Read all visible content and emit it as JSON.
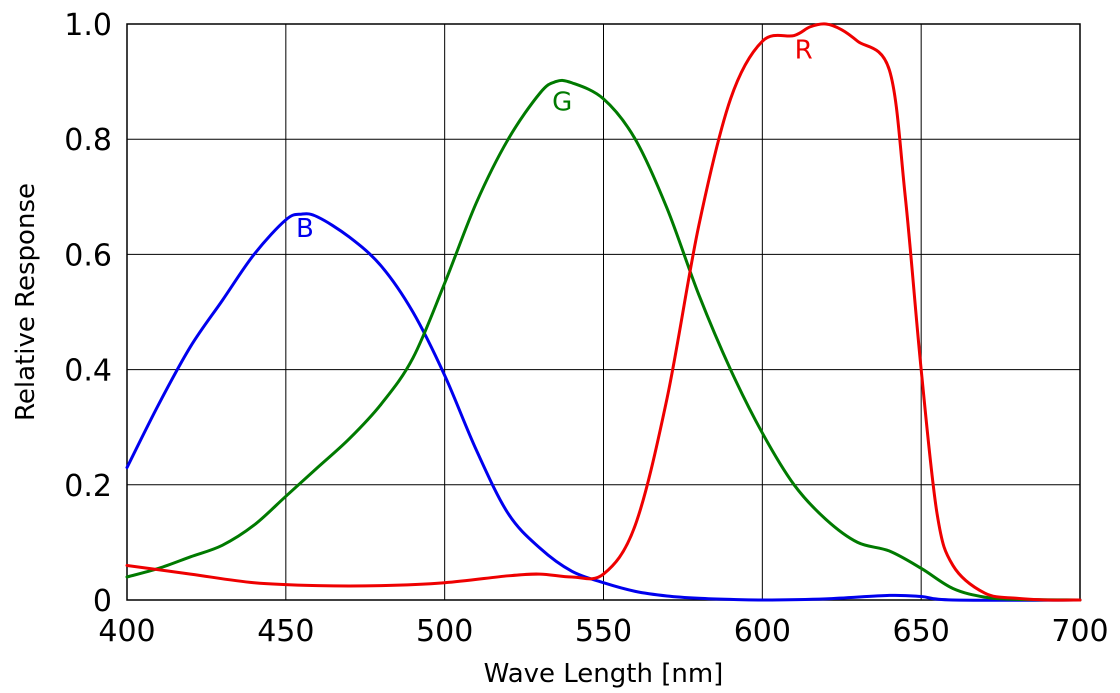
{
  "chart_data": {
    "type": "line",
    "title": "",
    "xlabel": "Wave Length [nm]",
    "ylabel": "Relative Response",
    "xlim": [
      400,
      700
    ],
    "ylim": [
      0,
      1.0
    ],
    "x_ticks": [
      400,
      450,
      500,
      550,
      600,
      650,
      700
    ],
    "x_tick_labels": [
      "400",
      "450",
      "500",
      "550",
      "600",
      "650",
      "700"
    ],
    "y_ticks": [
      0,
      0.2,
      0.4,
      0.6,
      0.8,
      1.0
    ],
    "y_tick_labels": [
      "0",
      "0.2",
      "0.4",
      "0.6",
      "0.8",
      "1.0"
    ],
    "grid": true,
    "series": [
      {
        "name": "B",
        "color": "#0000ee",
        "label_at": [
          456,
          0.63
        ],
        "x": [
          400,
          410,
          420,
          430,
          440,
          450,
          455,
          460,
          470,
          480,
          490,
          500,
          510,
          520,
          530,
          540,
          550,
          560,
          570,
          580,
          590,
          600,
          620,
          640,
          650,
          660,
          700
        ],
        "y": [
          0.23,
          0.34,
          0.44,
          0.52,
          0.6,
          0.66,
          0.67,
          0.665,
          0.63,
          0.58,
          0.5,
          0.39,
          0.26,
          0.15,
          0.09,
          0.05,
          0.03,
          0.015,
          0.007,
          0.003,
          0.001,
          0.0,
          0.002,
          0.008,
          0.006,
          0.0,
          0.0
        ]
      },
      {
        "name": "G",
        "color": "#007a00",
        "label_at": [
          537,
          0.85
        ],
        "x": [
          400,
          410,
          420,
          430,
          440,
          450,
          460,
          470,
          480,
          490,
          500,
          510,
          520,
          530,
          535,
          540,
          550,
          560,
          570,
          580,
          590,
          600,
          610,
          620,
          630,
          640,
          650,
          660,
          670,
          680,
          700
        ],
        "y": [
          0.04,
          0.055,
          0.075,
          0.095,
          0.13,
          0.18,
          0.23,
          0.28,
          0.34,
          0.42,
          0.55,
          0.69,
          0.8,
          0.88,
          0.9,
          0.898,
          0.87,
          0.8,
          0.68,
          0.53,
          0.4,
          0.29,
          0.2,
          0.14,
          0.1,
          0.085,
          0.055,
          0.02,
          0.005,
          0.001,
          0.0
        ]
      },
      {
        "name": "R",
        "color": "#ee0000",
        "label_at": [
          613,
          0.94
        ],
        "x": [
          400,
          420,
          440,
          460,
          480,
          500,
          520,
          530,
          540,
          550,
          560,
          570,
          580,
          590,
          600,
          610,
          615,
          620,
          625,
          630,
          640,
          645,
          650,
          655,
          660,
          670,
          680,
          690,
          700
        ],
        "y": [
          0.06,
          0.045,
          0.03,
          0.025,
          0.025,
          0.03,
          0.042,
          0.045,
          0.04,
          0.045,
          0.13,
          0.35,
          0.65,
          0.87,
          0.97,
          0.98,
          0.995,
          1.0,
          0.99,
          0.97,
          0.92,
          0.7,
          0.4,
          0.15,
          0.06,
          0.012,
          0.003,
          0.0,
          0.0
        ]
      }
    ]
  }
}
